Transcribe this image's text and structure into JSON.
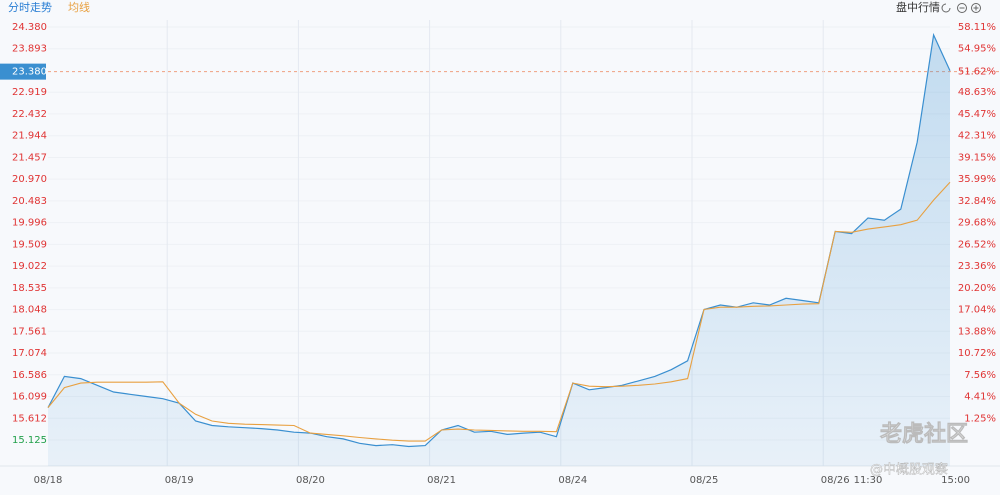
{
  "header": {
    "tabs": [
      "分时走势",
      "均线"
    ],
    "right_title": "盘中行情"
  },
  "watermark": {
    "main": "老虎社区",
    "sub": "@中概股观察"
  },
  "chart_data": {
    "type": "line",
    "categories": [
      "08/18",
      null,
      null,
      null,
      null,
      null,
      null,
      null,
      "08/19",
      null,
      null,
      null,
      null,
      null,
      null,
      null,
      "08/20",
      null,
      null,
      null,
      null,
      null,
      null,
      null,
      "08/21",
      null,
      null,
      null,
      null,
      null,
      null,
      null,
      "08/24",
      null,
      null,
      null,
      null,
      null,
      null,
      null,
      "08/25",
      null,
      null,
      null,
      null,
      null,
      null,
      null,
      "08/26",
      null,
      "11:30",
      null,
      null,
      null,
      null,
      "15:00"
    ],
    "series": [
      {
        "name": "分时走势",
        "color": "#3a8fd0",
        "values": [
          15.85,
          16.55,
          16.5,
          16.35,
          16.2,
          16.15,
          16.1,
          16.05,
          15.95,
          15.55,
          15.45,
          15.42,
          15.4,
          15.38,
          15.35,
          15.3,
          15.28,
          15.2,
          15.15,
          15.05,
          15.0,
          15.02,
          14.98,
          15.0,
          15.35,
          15.45,
          15.3,
          15.32,
          15.25,
          15.28,
          15.3,
          15.2,
          16.4,
          16.25,
          16.3,
          16.35,
          16.45,
          16.55,
          16.7,
          16.9,
          18.05,
          18.15,
          18.1,
          18.2,
          18.15,
          18.3,
          18.25,
          18.2,
          19.8,
          19.75,
          20.1,
          20.05,
          20.3,
          21.8,
          24.2,
          23.4
        ]
      },
      {
        "name": "均线",
        "color": "#e8a040",
        "values": [
          15.85,
          16.3,
          16.4,
          16.42,
          16.42,
          16.42,
          16.42,
          16.43,
          15.95,
          15.7,
          15.55,
          15.5,
          15.48,
          15.47,
          15.46,
          15.45,
          15.28,
          15.25,
          15.22,
          15.18,
          15.15,
          15.12,
          15.1,
          15.1,
          15.35,
          15.37,
          15.35,
          15.34,
          15.33,
          15.32,
          15.32,
          15.31,
          16.4,
          16.33,
          16.32,
          16.33,
          16.35,
          16.38,
          16.43,
          16.5,
          18.05,
          18.1,
          18.1,
          18.12,
          18.13,
          18.15,
          18.17,
          18.18,
          19.8,
          19.78,
          19.85,
          19.9,
          19.95,
          20.05,
          20.5,
          20.9
        ]
      }
    ],
    "ylim": [
      15.125,
      24.38
    ],
    "yticks": [
      {
        "value": 24.38,
        "label": "24.380"
      },
      23.893,
      {
        "value": 23.38,
        "label": "23.380"
      },
      22.919,
      22.432,
      21.944,
      21.457,
      {
        "value": 20.97,
        "label": "20.970"
      },
      20.483,
      19.996,
      19.509,
      19.022,
      18.535,
      18.048,
      17.561,
      17.074,
      16.586,
      16.099,
      15.612,
      15.125
    ],
    "highlight_tick": 2,
    "y2lim": [
      -1.91,
      58.11
    ],
    "y2ticks": [
      {
        "value": 58.11,
        "label": "58.11%"
      },
      {
        "value": 54.95,
        "label": "54.95%"
      },
      {
        "value": 51.62,
        "label": "51.62%"
      },
      {
        "value": 48.63,
        "label": "48.63%"
      },
      {
        "value": 45.47,
        "label": "45.47%"
      },
      {
        "value": 42.31,
        "label": "42.31%"
      },
      {
        "value": 39.15,
        "label": "39.15%"
      },
      {
        "value": 35.99,
        "label": "35.99%"
      },
      {
        "value": 32.84,
        "label": "32.84%"
      },
      {
        "value": 29.68,
        "label": "29.68%"
      },
      {
        "value": 26.52,
        "label": "26.52%"
      },
      {
        "value": 23.36,
        "label": "23.36%"
      },
      {
        "value": 20.2,
        "label": "20.20%"
      },
      {
        "value": 17.04,
        "label": "17.04%"
      },
      {
        "value": 13.88,
        "label": "13.88%"
      },
      {
        "value": 10.72,
        "label": "10.72%"
      },
      {
        "value": 7.56,
        "label": "7.56%"
      },
      {
        "value": 4.41,
        "label": "4.41%"
      },
      {
        "value": 1.25,
        "label": "1.25%"
      }
    ],
    "grid": true,
    "up_color": "#e03434",
    "down_color": "#21a04a"
  }
}
